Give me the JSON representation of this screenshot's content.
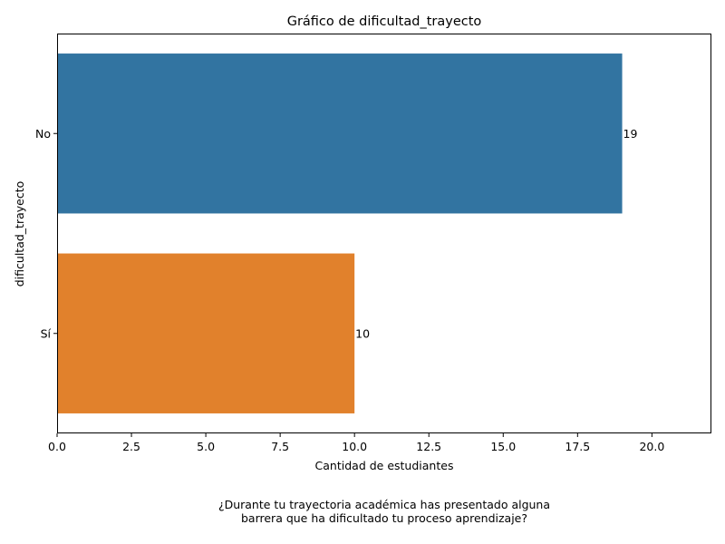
{
  "chart_data": {
    "type": "bar",
    "orientation": "horizontal",
    "title": "Gráfico de dificultad_trayecto",
    "xlabel": "Cantidad de estudiantes",
    "ylabel": "dificultad_trayecto",
    "categories": [
      "No",
      "Sí"
    ],
    "values": [
      19,
      10
    ],
    "data_labels": [
      "19",
      "10"
    ],
    "colors": [
      "#3274a1",
      "#e1812c"
    ],
    "xlim": [
      0,
      22
    ],
    "xticks": [
      0,
      2.5,
      5,
      7.5,
      10,
      12.5,
      15,
      17.5,
      20
    ],
    "xtick_labels": [
      "0.0",
      "2.5",
      "5.0",
      "7.5",
      "10.0",
      "12.5",
      "15.0",
      "17.5",
      "20.0"
    ],
    "grid": false,
    "legend": "none"
  },
  "caption": {
    "line1": "¿Durante tu trayectoria académica has presentado alguna",
    "line2": "barrera que ha dificultado tu proceso aprendizaje?"
  }
}
